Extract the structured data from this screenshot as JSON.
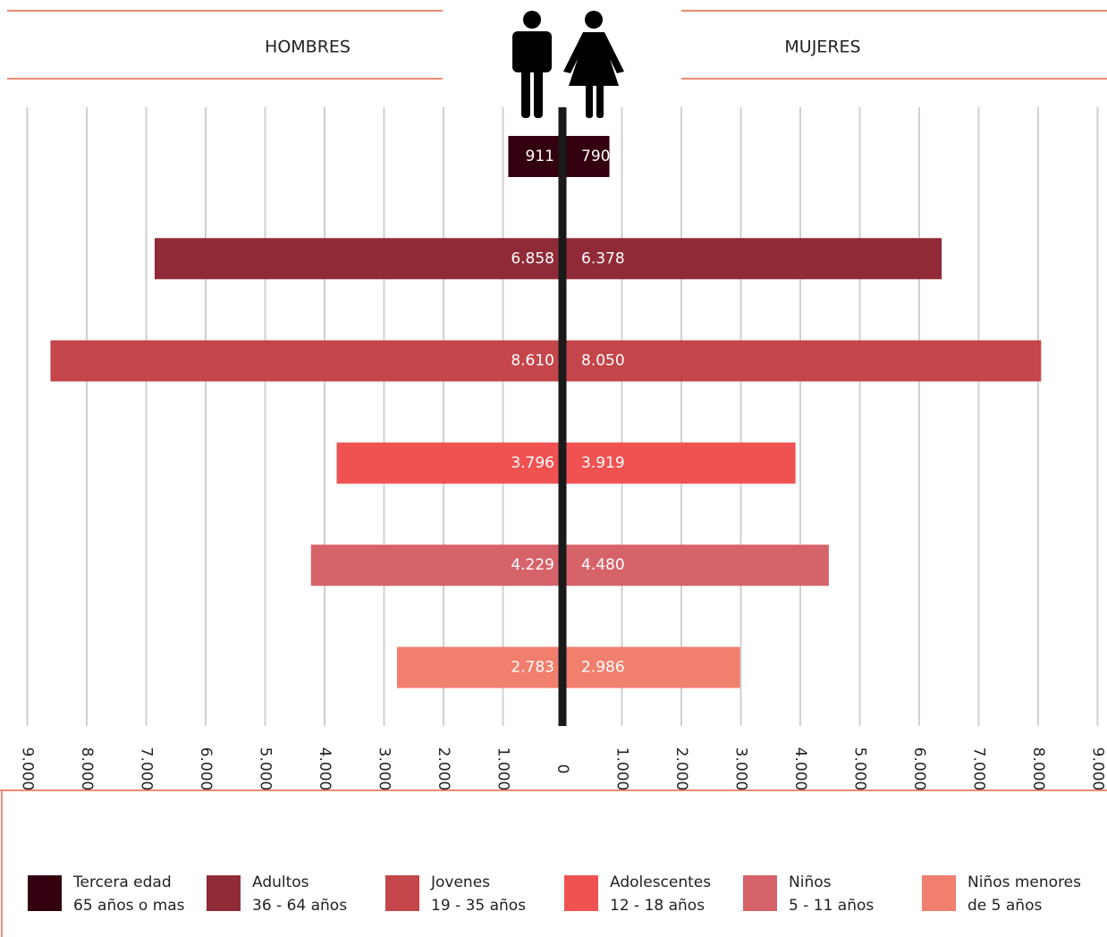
{
  "chart_data": {
    "type": "pyramid",
    "categories": [
      "Tercera edad",
      "Adultos",
      "Jovenes",
      "Adolescentes",
      "Niños",
      "Niños menores"
    ],
    "category_ranges": [
      "65 años o mas",
      "36 - 64 años",
      "19 - 35 años",
      "12 - 18 años",
      "5 - 11 años",
      "de 5 años"
    ],
    "colors": [
      "#33000f",
      "#912a37",
      "#c4464a",
      "#f05252",
      "#d7636a",
      "#f17f6d"
    ],
    "series": [
      {
        "name": "HOMBRES",
        "values": [
          911,
          6858,
          8610,
          3796,
          4229,
          2783
        ],
        "value_labels": [
          "911",
          "6.858",
          "8.610",
          "3.796",
          "4.229",
          "2.783"
        ]
      },
      {
        "name": "MUJERES",
        "values": [
          790,
          6378,
          8050,
          3919,
          4480,
          2986
        ],
        "value_labels": [
          "790",
          "6.378",
          "8.050",
          "3.919",
          "4.480",
          "2.986"
        ]
      }
    ],
    "xlim": [
      0,
      9000
    ],
    "xticks": [
      0,
      {
        "value": 1000,
        "label": "1.000"
      },
      {
        "value": 2000,
        "label": "2.000"
      },
      {
        "value": 3000,
        "label": "3.000"
      },
      {
        "value": 4000,
        "label": "4.000"
      },
      {
        "value": 5000,
        "label": "5.000"
      },
      {
        "value": 6000,
        "label": "6.000"
      },
      {
        "value": 7000,
        "label": "7.000"
      },
      {
        "value": 8000,
        "label": "8.000"
      },
      {
        "value": 9000,
        "label": "9.000"
      }
    ],
    "grid": true
  }
}
